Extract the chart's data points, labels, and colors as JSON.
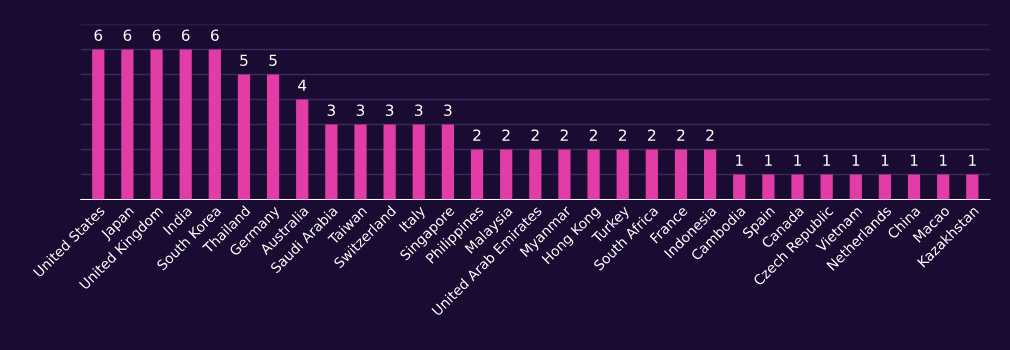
{
  "chart_data": {
    "type": "bar",
    "categories": [
      "United States",
      "Japan",
      "United Kingdom",
      "India",
      "South Korea",
      "Thailand",
      "Germany",
      "Australia",
      "Saudi Arabia",
      "Taiwan",
      "Switzerland",
      "Italy",
      "Singapore",
      "Philippines",
      "Malaysia",
      "United Arab Emirates",
      "Myanmar",
      "Hong Kong",
      "Turkey",
      "South Africa",
      "France",
      "Indonesia",
      "Cambodia",
      "Spain",
      "Canada",
      "Czech Republic",
      "Vietnam",
      "Netherlands",
      "China",
      "Macao",
      "Kazakhstan"
    ],
    "values": [
      6,
      6,
      6,
      6,
      6,
      5,
      5,
      4,
      3,
      3,
      3,
      3,
      3,
      2,
      2,
      2,
      2,
      2,
      2,
      2,
      2,
      2,
      1,
      1,
      1,
      1,
      1,
      1,
      1,
      1,
      1
    ],
    "color": "#e23ca6",
    "ylim": [
      0,
      7
    ],
    "yticks": [
      {
        "value": 0,
        "label": null
      },
      {
        "value": 1,
        "label": null
      },
      {
        "value": 2,
        "label": null
      },
      {
        "value": 3,
        "label": null
      },
      {
        "value": 4,
        "label": null
      },
      {
        "value": 5,
        "label": null
      },
      {
        "value": 6,
        "label": null
      },
      {
        "value": 7,
        "label": null
      }
    ],
    "grid": "y",
    "tick_labels": "x",
    "data_labels": true
  }
}
